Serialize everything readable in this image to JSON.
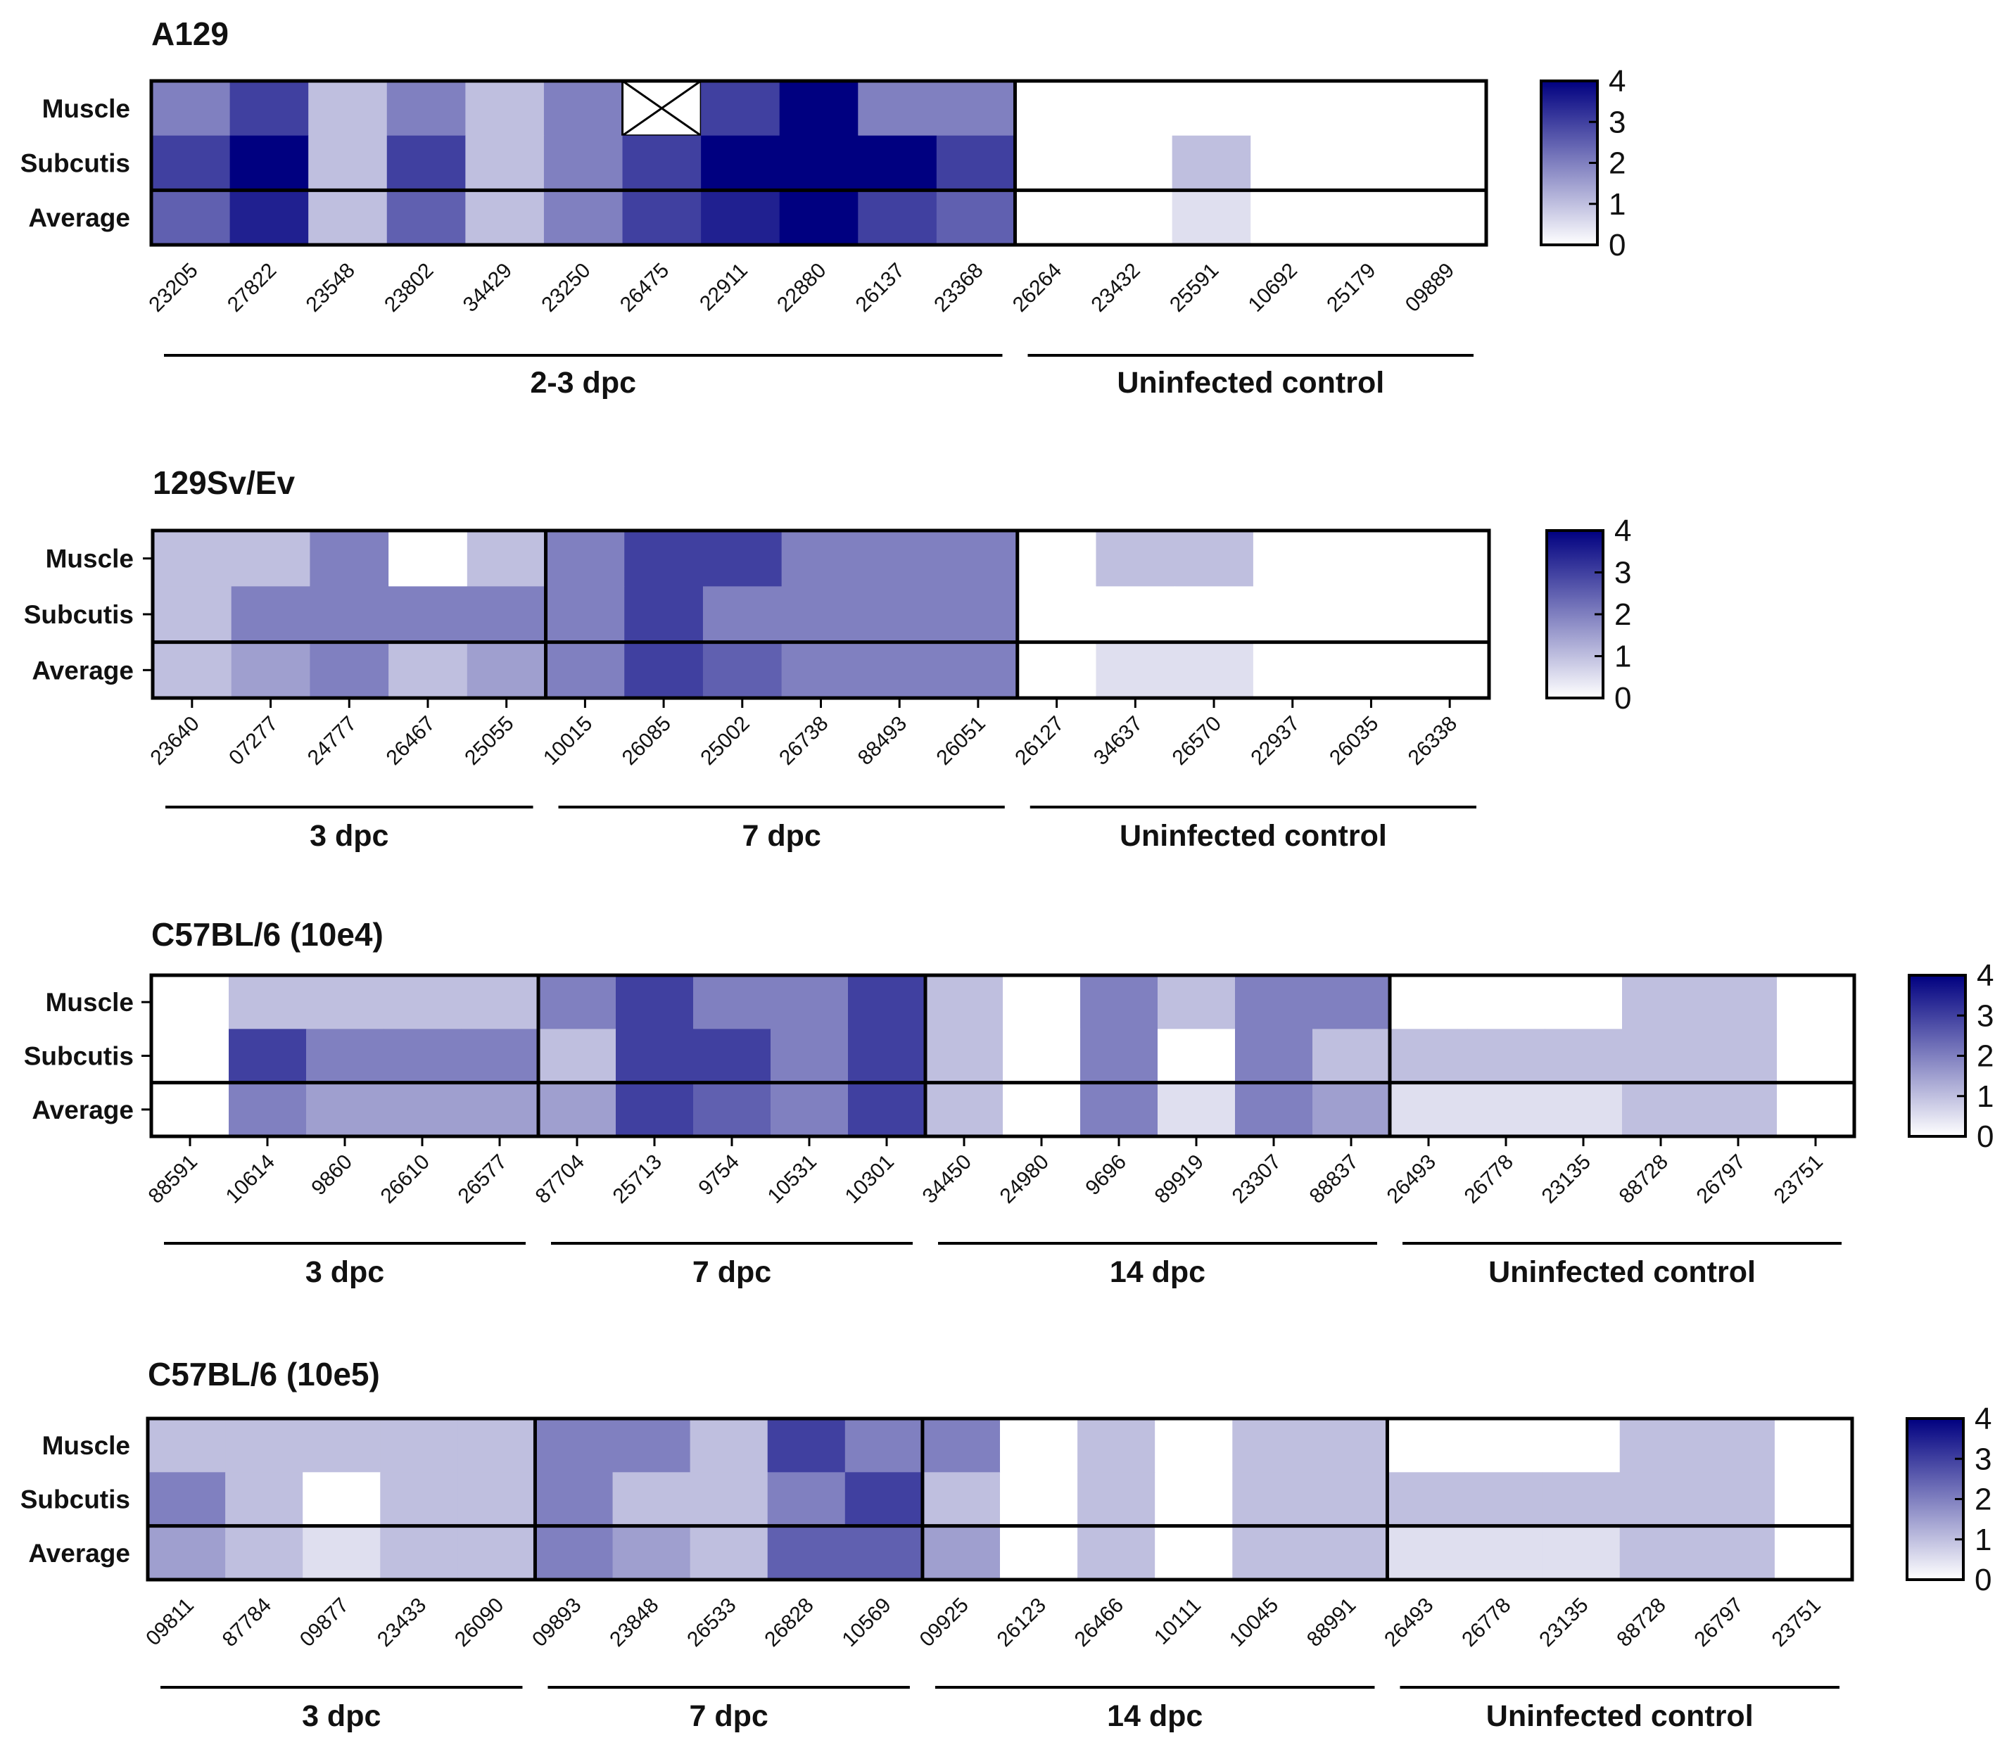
{
  "chart_data": [
    {
      "type": "heatmap",
      "title": "A129",
      "rows": [
        "Muscle",
        "Subcutis",
        "Average"
      ],
      "columns": [
        "23205",
        "27822",
        "23548",
        "23802",
        "34429",
        "23250",
        "26475",
        "22911",
        "22880",
        "26137",
        "23368",
        "26264",
        "23432",
        "25591",
        "10692",
        "25179",
        "09889"
      ],
      "values": [
        [
          2,
          3,
          1,
          2,
          1,
          2,
          null,
          3,
          4,
          2,
          2,
          0,
          0,
          0,
          0,
          0,
          0
        ],
        [
          3,
          4,
          1,
          3,
          1,
          2,
          3,
          4,
          4,
          4,
          3,
          0,
          0,
          1,
          0,
          0,
          0
        ],
        [
          2.5,
          3.5,
          1,
          2.5,
          1,
          2,
          3,
          3.5,
          4,
          3,
          2.5,
          0,
          0,
          0.5,
          0,
          0,
          0
        ]
      ],
      "not_determined": "X",
      "groups": [
        {
          "label": "2-3 dpc",
          "start": 0,
          "count": 11
        },
        {
          "label": "Uninfected control",
          "start": 11,
          "count": 6
        }
      ],
      "scale": {
        "min": 0,
        "max": 4,
        "ticks": [
          "4",
          "3",
          "2",
          "1",
          "0"
        ],
        "low_color": "#ffffff",
        "high_color": "#000080"
      }
    },
    {
      "type": "heatmap",
      "title": "129Sv/Ev",
      "rows": [
        "Muscle",
        "Subcutis",
        "Average"
      ],
      "columns": [
        "23640",
        "07277",
        "24777",
        "26467",
        "25055",
        "10015",
        "26085",
        "25002",
        "26738",
        "88493",
        "26051",
        "26127",
        "34637",
        "26570",
        "22937",
        "26035",
        "26338"
      ],
      "values": [
        [
          1,
          1,
          2,
          0,
          1,
          2,
          3,
          3,
          2,
          2,
          2,
          0,
          1,
          1,
          0,
          0,
          0
        ],
        [
          1,
          2,
          2,
          2,
          2,
          2,
          3,
          2,
          2,
          2,
          2,
          0,
          0,
          0,
          0,
          0,
          0
        ],
        [
          1,
          1.5,
          2,
          1,
          1.5,
          2,
          3,
          2.5,
          2,
          2,
          2,
          0,
          0.5,
          0.5,
          0,
          0,
          0
        ]
      ],
      "groups": [
        {
          "label": "3 dpc",
          "start": 0,
          "count": 5
        },
        {
          "label": "7 dpc",
          "start": 5,
          "count": 6
        },
        {
          "label": "Uninfected control",
          "start": 11,
          "count": 6
        }
      ],
      "scale": {
        "min": 0,
        "max": 4,
        "ticks": [
          "4",
          "3",
          "2",
          "1",
          "0"
        ],
        "low_color": "#ffffff",
        "high_color": "#000080"
      }
    },
    {
      "type": "heatmap",
      "title": "C57BL/6 (10e4)",
      "rows": [
        "Muscle",
        "Subcutis",
        "Average"
      ],
      "columns": [
        "88591",
        "10614",
        "9860",
        "26610",
        "26577",
        "87704",
        "25713",
        "9754",
        "10531",
        "10301",
        "34450",
        "24980",
        "9696",
        "89919",
        "23307",
        "88837",
        "26493",
        "26778",
        "23135",
        "88728",
        "26797",
        "23751"
      ],
      "values": [
        [
          0,
          1,
          1,
          1,
          1,
          2,
          3,
          2,
          2,
          3,
          1,
          0,
          2,
          1,
          2,
          2,
          0,
          0,
          0,
          1,
          1,
          0
        ],
        [
          0,
          3,
          2,
          2,
          2,
          1,
          3,
          3,
          2,
          3,
          1,
          0,
          2,
          0,
          2,
          1,
          1,
          1,
          1,
          1,
          1,
          0
        ],
        [
          0,
          2,
          1.5,
          1.5,
          1.5,
          1.5,
          3,
          2.5,
          2,
          3,
          1,
          0,
          2,
          0.5,
          2,
          1.5,
          0.5,
          0.5,
          0.5,
          1,
          1,
          0
        ]
      ],
      "groups": [
        {
          "label": "3 dpc",
          "start": 0,
          "count": 5
        },
        {
          "label": "7 dpc",
          "start": 5,
          "count": 5
        },
        {
          "label": "14 dpc",
          "start": 10,
          "count": 6
        },
        {
          "label": "Uninfected control",
          "start": 16,
          "count": 6
        }
      ],
      "scale": {
        "min": 0,
        "max": 4,
        "ticks": [
          "4",
          "3",
          "2",
          "1",
          "0"
        ],
        "low_color": "#ffffff",
        "high_color": "#000080"
      }
    },
    {
      "type": "heatmap",
      "title": "C57BL/6 (10e5)",
      "rows": [
        "Muscle",
        "Subcutis",
        "Average"
      ],
      "columns": [
        "09811",
        "87784",
        "09877",
        "23433",
        "26090",
        "09893",
        "23848",
        "26533",
        "26828",
        "10569",
        "09925",
        "26123",
        "26466",
        "10111",
        "10045",
        "88991",
        "26493",
        "26778",
        "23135",
        "88728",
        "26797",
        "23751"
      ],
      "values": [
        [
          1,
          1,
          1,
          1,
          1,
          2,
          2,
          1,
          3,
          2,
          2,
          0,
          1,
          0,
          1,
          1,
          0,
          0,
          0,
          1,
          1,
          0
        ],
        [
          2,
          1,
          0,
          1,
          1,
          2,
          1,
          1,
          2,
          3,
          1,
          0,
          1,
          0,
          1,
          1,
          1,
          1,
          1,
          1,
          1,
          0
        ],
        [
          1.5,
          1,
          0.5,
          1,
          1,
          2,
          1.5,
          1,
          2.5,
          2.5,
          1.5,
          0,
          1,
          0,
          1,
          1,
          0.5,
          0.5,
          0.5,
          1,
          1,
          0
        ]
      ],
      "groups": [
        {
          "label": "3 dpc",
          "start": 0,
          "count": 5
        },
        {
          "label": "7 dpc",
          "start": 5,
          "count": 5
        },
        {
          "label": "14 dpc",
          "start": 10,
          "count": 6
        },
        {
          "label": "Uninfected control",
          "start": 16,
          "count": 6
        }
      ],
      "scale": {
        "min": 0,
        "max": 4,
        "ticks": [
          "4",
          "3",
          "2",
          "1",
          "0"
        ],
        "low_color": "#ffffff",
        "high_color": "#000080"
      }
    }
  ]
}
